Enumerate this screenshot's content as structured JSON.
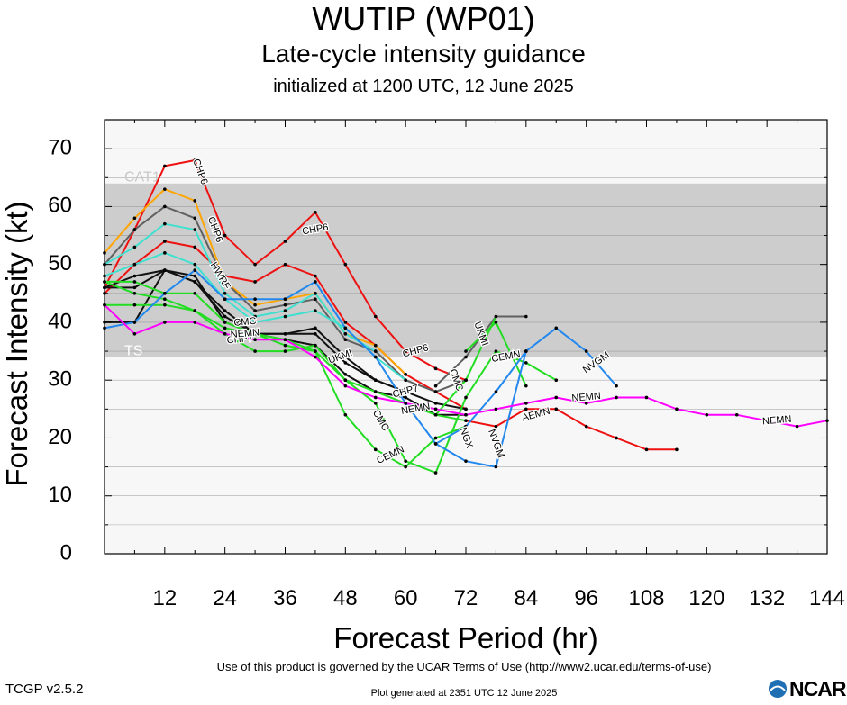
{
  "header": {
    "title": "WUTIP (WP01)",
    "subtitle": "Late-cycle intensity guidance",
    "subtitle2": "initialized at 1200 UTC, 12 June 2025"
  },
  "footer": {
    "terms": "Use of this product is governed by the UCAR Terms of Use (http://www2.ucar.edu/terms-of-use)",
    "version": "TCGP v2.5.2",
    "generated": "Plot generated at 2351 UTC   12 June 2025",
    "logo_text": "NCAR"
  },
  "chart_data": {
    "type": "line",
    "title": "WUTIP (WP01)",
    "xlabel": "Forecast Period (hr)",
    "ylabel": "Forecast Intensity (kt)",
    "xlim": [
      0,
      144
    ],
    "ylim": [
      0,
      75
    ],
    "xticks": [
      12,
      24,
      36,
      48,
      60,
      72,
      84,
      96,
      108,
      120,
      132,
      144
    ],
    "yticks": [
      0,
      10,
      20,
      30,
      40,
      50,
      60,
      70
    ],
    "grid": true,
    "bands": [
      {
        "label": "TS",
        "range": [
          34,
          64
        ],
        "color": "#cdcdcd"
      },
      {
        "label": "CAT1",
        "range": [
          64,
          75
        ],
        "color": "#f7f7f7"
      }
    ],
    "series": [
      {
        "name": "CHP6",
        "color": "#ee1111",
        "x": [
          0,
          6,
          12,
          18,
          24,
          30,
          36,
          42,
          48,
          54,
          60,
          66,
          72
        ],
        "y": [
          46,
          56,
          67,
          68,
          55,
          50,
          54,
          59,
          50,
          41,
          35,
          32,
          30
        ],
        "labels": [
          {
            "x": 19,
            "y": 66,
            "rot": 70
          },
          {
            "x": 42,
            "y": 56,
            "rot": -10
          },
          {
            "x": 62,
            "y": 35,
            "rot": -15
          }
        ]
      },
      {
        "name": "CHP6",
        "color": "#ee1111",
        "x": [
          0,
          6,
          12,
          18,
          24,
          30,
          36,
          42,
          48,
          54,
          60,
          66,
          72
        ],
        "y": [
          45,
          50,
          54,
          53,
          48,
          47,
          50,
          48,
          40,
          36,
          31,
          28,
          25
        ],
        "labels": [
          {
            "x": 22,
            "y": 56,
            "rot": 70
          }
        ]
      },
      {
        "name": "AEMN",
        "color": "#ee1111",
        "x": [
          72,
          78,
          84,
          90,
          96,
          102,
          108,
          114
        ],
        "y": [
          23,
          22,
          25,
          25,
          22,
          20,
          18,
          18
        ],
        "labels": [
          {
            "x": 86,
            "y": 24,
            "rot": -15
          }
        ]
      },
      {
        "name": "",
        "color": "#ffa500",
        "x": [
          0,
          6,
          12,
          18,
          24,
          30,
          36,
          42,
          48,
          54,
          60
        ],
        "y": [
          52,
          58,
          63,
          61,
          47,
          43,
          44,
          45,
          38,
          36,
          31
        ],
        "labels": []
      },
      {
        "name": "",
        "color": "#606060",
        "x": [
          0,
          6,
          12,
          18,
          24,
          30,
          36,
          42,
          48,
          54,
          60,
          66,
          72
        ],
        "y": [
          50,
          56,
          60,
          58,
          47,
          42,
          43,
          44,
          37,
          35,
          30,
          28,
          30
        ],
        "labels": []
      },
      {
        "name": "",
        "color": "#40e0d0",
        "x": [
          0,
          6,
          12,
          18,
          24,
          30,
          36,
          42,
          48,
          54
        ],
        "y": [
          50,
          53,
          57,
          56,
          45,
          41,
          42,
          45,
          38,
          35
        ],
        "labels": []
      },
      {
        "name": "HWRF",
        "color": "#40e0d0",
        "x": [
          0,
          6,
          12,
          18,
          24,
          30,
          36,
          42,
          48,
          54,
          60
        ],
        "y": [
          48,
          50,
          52,
          50,
          44,
          40,
          41,
          42,
          39,
          34,
          30
        ],
        "labels": [
          {
            "x": 23,
            "y": 48,
            "rot": 60
          }
        ]
      },
      {
        "name": "UKMI",
        "color": "#111111",
        "x": [
          0,
          6,
          12,
          18,
          24,
          30,
          36,
          42,
          48,
          54,
          60
        ],
        "y": [
          46,
          48,
          49,
          47,
          42,
          38,
          38,
          39,
          34,
          30,
          28
        ],
        "labels": [
          {
            "x": 47,
            "y": 34,
            "rot": -20
          }
        ]
      },
      {
        "name": "CHP7",
        "color": "#111111",
        "x": [
          0,
          6,
          12,
          18,
          24,
          30,
          36,
          42,
          48,
          54,
          60,
          66,
          72
        ],
        "y": [
          46,
          46,
          49,
          47,
          41,
          38,
          38,
          38,
          33,
          30,
          28,
          26,
          25
        ],
        "labels": [
          {
            "x": 60,
            "y": 28,
            "rot": -15
          }
        ]
      },
      {
        "name": "",
        "color": "#111111",
        "x": [
          0,
          6,
          12,
          18,
          24,
          30,
          36,
          42,
          48,
          54,
          60,
          66,
          72
        ],
        "y": [
          40,
          40,
          49,
          48,
          40,
          38,
          37,
          36,
          31,
          28,
          27,
          24,
          24
        ],
        "labels": []
      },
      {
        "name": "",
        "color": "#606060",
        "x": [
          66,
          72,
          78,
          84
        ],
        "y": [
          29,
          34,
          41,
          41
        ],
        "labels": []
      },
      {
        "name": "CMC",
        "color": "#22dd22",
        "x": [
          0,
          6,
          12,
          18,
          24,
          30,
          36,
          42,
          48,
          54,
          60,
          66,
          72
        ],
        "y": [
          47,
          45,
          44,
          42,
          39,
          38,
          37,
          35,
          24,
          18,
          15,
          20,
          22
        ],
        "labels": [
          {
            "x": 28,
            "y": 40,
            "rot": -5
          },
          {
            "x": 55,
            "y": 23,
            "rot": 60
          }
        ]
      },
      {
        "name": "CHP7",
        "color": "#22dd22",
        "x": [
          0,
          6,
          12,
          18,
          24,
          30,
          36,
          42,
          48,
          54,
          60,
          66,
          72,
          78,
          84,
          90
        ],
        "y": [
          43,
          43,
          43,
          42,
          38,
          35,
          35,
          36,
          30,
          26,
          16,
          14,
          27,
          35,
          33,
          30
        ],
        "labels": [
          {
            "x": 27,
            "y": 37,
            "rot": -5
          }
        ]
      },
      {
        "name": "CEMN",
        "color": "#22dd22",
        "x": [
          0,
          6,
          12,
          18,
          24,
          30,
          36,
          42,
          48,
          54,
          60,
          66,
          72
        ],
        "y": [
          47,
          47,
          45,
          45,
          40,
          38,
          36,
          35,
          30,
          28,
          26,
          24,
          23
        ],
        "labels": [
          {
            "x": 57,
            "y": 17,
            "rot": -25
          },
          {
            "x": 80,
            "y": 34,
            "rot": -10
          }
        ]
      },
      {
        "name": "UKMI",
        "color": "#22dd22",
        "x": [
          72,
          78,
          84
        ],
        "y": [
          35,
          40,
          29
        ],
        "labels": [
          {
            "x": 75,
            "y": 38,
            "rot": 70
          }
        ]
      },
      {
        "name": "CMC",
        "color": "#22dd22",
        "x": [
          66,
          72,
          78
        ],
        "y": [
          24,
          30,
          41
        ],
        "labels": [
          {
            "x": 70,
            "y": 30,
            "rot": 70
          }
        ]
      },
      {
        "name": "NVGM",
        "color": "#2288ee",
        "x": [
          0,
          6,
          12,
          18,
          24,
          30,
          36,
          42,
          48,
          54,
          60,
          66,
          72,
          78,
          84,
          90,
          96,
          102
        ],
        "y": [
          39,
          40,
          45,
          49,
          44,
          44,
          44,
          47,
          39,
          34,
          26,
          19,
          16,
          15,
          35,
          39,
          35,
          29
        ],
        "labels": [
          {
            "x": 78,
            "y": 19,
            "rot": 70
          },
          {
            "x": 98,
            "y": 33,
            "rot": -35
          }
        ]
      },
      {
        "name": "NGX",
        "color": "#2288ee",
        "x": [
          66,
          72,
          78,
          84
        ],
        "y": [
          19,
          22,
          28,
          35
        ],
        "labels": [
          {
            "x": 72,
            "y": 20,
            "rot": 70
          }
        ]
      },
      {
        "name": "NEMN",
        "color": "#ff00ff",
        "x": [
          0,
          6,
          12,
          18,
          24,
          30,
          36,
          42,
          48,
          54,
          60,
          66,
          72,
          78,
          84,
          90,
          96,
          102,
          108,
          114,
          120,
          126,
          132,
          138,
          144
        ],
        "y": [
          43,
          38,
          40,
          40,
          38,
          37,
          37,
          34,
          29,
          27,
          26,
          25,
          24,
          25,
          26,
          27,
          26,
          27,
          27,
          25,
          24,
          24,
          23,
          22,
          23
        ],
        "labels": [
          {
            "x": 28,
            "y": 38,
            "rot": -5
          },
          {
            "x": 62,
            "y": 25,
            "rot": -10
          },
          {
            "x": 96,
            "y": 27,
            "rot": -5
          },
          {
            "x": 134,
            "y": 23,
            "rot": -5
          }
        ]
      }
    ]
  }
}
